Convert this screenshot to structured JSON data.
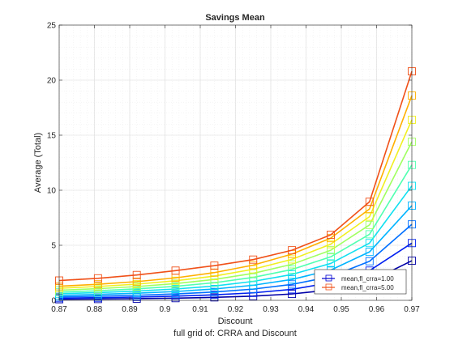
{
  "chart_data": {
    "type": "line",
    "title": "Savings Mean",
    "xlabel": "Discount",
    "ylabel": "Average (Total)",
    "footer": "full grid of: CRRA and Discount",
    "xlim": [
      0.87,
      0.97
    ],
    "ylim": [
      0,
      25
    ],
    "xticks": [
      "0.87",
      "0.88",
      "0.89",
      "0.9",
      "0.91",
      "0.92",
      "0.93",
      "0.94",
      "0.95",
      "0.96",
      "0.97"
    ],
    "yticks": [
      "0",
      "5",
      "10",
      "15",
      "20",
      "25"
    ],
    "grid": "on (major and minor)",
    "marker": "square",
    "colormap": "jet",
    "legend": {
      "placement": "bottom-right",
      "entries": [
        {
          "label": "mean,fl_crra=1.00",
          "color": "#0000d0"
        },
        {
          "label": "mean,fl_crra=5.00",
          "color": "#f05018"
        }
      ]
    },
    "x": [
      0.87,
      0.881,
      0.892,
      0.903,
      0.914,
      0.925,
      0.936,
      0.947,
      0.958,
      0.97
    ],
    "series": [
      {
        "color": "#0000a8",
        "values": [
          0.1,
          0.12,
          0.15,
          0.2,
          0.27,
          0.38,
          0.58,
          0.95,
          1.7,
          3.6
        ]
      },
      {
        "color": "#0020f0",
        "values": [
          0.2,
          0.24,
          0.3,
          0.38,
          0.5,
          0.68,
          1.0,
          1.6,
          2.7,
          5.2
        ]
      },
      {
        "color": "#0070ff",
        "values": [
          0.32,
          0.38,
          0.46,
          0.58,
          0.76,
          1.02,
          1.45,
          2.15,
          3.55,
          6.9
        ]
      },
      {
        "color": "#00b4ff",
        "values": [
          0.45,
          0.54,
          0.65,
          0.8,
          1.03,
          1.37,
          1.9,
          2.75,
          4.4,
          8.6
        ]
      },
      {
        "color": "#10e0f0",
        "values": [
          0.6,
          0.7,
          0.84,
          1.03,
          1.3,
          1.72,
          2.35,
          3.35,
          5.2,
          10.4
        ]
      },
      {
        "color": "#50ffb0",
        "values": [
          0.75,
          0.87,
          1.04,
          1.27,
          1.6,
          2.08,
          2.8,
          3.95,
          6.0,
          12.3
        ]
      },
      {
        "color": "#a0ff60",
        "values": [
          0.92,
          1.06,
          1.25,
          1.52,
          1.9,
          2.45,
          3.27,
          4.55,
          6.85,
          14.4
        ]
      },
      {
        "color": "#f0f020",
        "values": [
          1.1,
          1.26,
          1.47,
          1.78,
          2.2,
          2.82,
          3.72,
          5.1,
          7.6,
          16.4
        ]
      },
      {
        "color": "#ffb000",
        "values": [
          1.28,
          1.46,
          1.7,
          2.04,
          2.52,
          3.2,
          4.2,
          5.65,
          8.3,
          18.6
        ]
      },
      {
        "color": "#f05018",
        "values": [
          1.8,
          2.0,
          2.3,
          2.7,
          3.15,
          3.7,
          4.55,
          5.95,
          8.95,
          20.8
        ]
      }
    ]
  }
}
